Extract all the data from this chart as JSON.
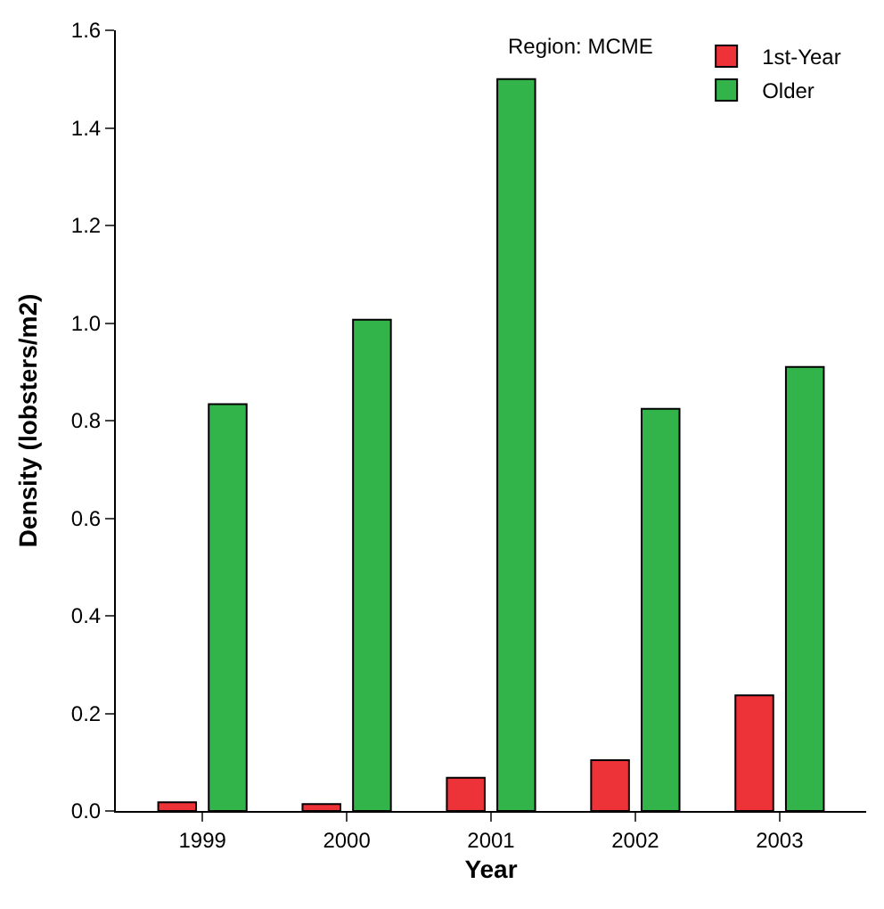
{
  "chart_data": {
    "type": "bar",
    "xlabel": "Year",
    "ylabel": "Density (lobsters/m2)",
    "annotations": [
      "Region: MCME"
    ],
    "categories": [
      "1999",
      "2000",
      "2001",
      "2002",
      "2003"
    ],
    "series": [
      {
        "name": "1st-Year",
        "color": "#ee3338",
        "values": [
          0.018,
          0.014,
          0.068,
          0.104,
          0.237
        ]
      },
      {
        "name": "Older",
        "color": "#33b44a",
        "values": [
          0.834,
          1.007,
          1.5,
          0.824,
          0.91
        ]
      }
    ],
    "ylim": [
      0,
      1.6
    ],
    "yticks": [
      {
        "value": 0,
        "label": "0.0"
      },
      {
        "value": 0.2,
        "label": "0.2"
      },
      {
        "value": 0.4,
        "label": "0.4"
      },
      {
        "value": 0.6,
        "label": "0.6"
      },
      {
        "value": 0.8,
        "label": "0.8"
      },
      {
        "value": 1.0,
        "label": "1.0"
      },
      {
        "value": 1.2,
        "label": "1.2"
      },
      {
        "value": 1.4,
        "label": "1.4"
      },
      {
        "value": 1.6,
        "label": "1.6"
      }
    ],
    "legend": "top right"
  }
}
